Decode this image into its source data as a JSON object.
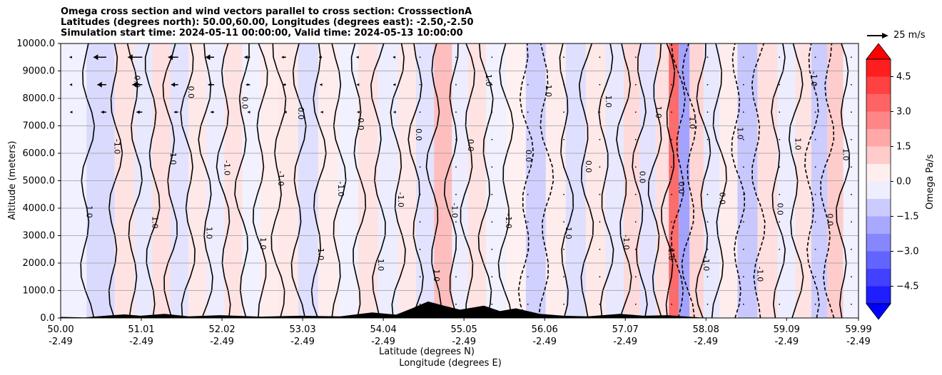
{
  "titles": {
    "line1": "Omega cross section and wind vectors parallel to cross section: CrosssectionA",
    "line2": "Latitudes (degrees north): 50.00,60.00, Longitudes (degrees east): -2.50,-2.50",
    "line3": "Simulation start time: 2024-05-11 00:00:00, Valid time: 2024-05-13 10:00:00"
  },
  "reference_vector": {
    "label": "25 m/s"
  },
  "chart_data": {
    "type": "heatmap",
    "title": "Omega cross section and wind vectors parallel to cross section: CrosssectionA",
    "ylabel": "Altitude (meters)",
    "xlabel_lat": "Latitude (degrees N)",
    "xlabel_lon": "Longitude (degrees E)",
    "ylim": [
      0,
      10000
    ],
    "xlim": [
      50.0,
      59.99
    ],
    "y_ticks": [
      {
        "value": 0,
        "label": "0.0"
      },
      {
        "value": 1000,
        "label": "1000.0"
      },
      {
        "value": 2000,
        "label": "2000.0"
      },
      {
        "value": 3000,
        "label": "3000.0"
      },
      {
        "value": 4000,
        "label": "4000.0"
      },
      {
        "value": 5000,
        "label": "5000.0"
      },
      {
        "value": 6000,
        "label": "6000.0"
      },
      {
        "value": 7000,
        "label": "7000.0"
      },
      {
        "value": 8000,
        "label": "8000.0"
      },
      {
        "value": 9000,
        "label": "9000.0"
      },
      {
        "value": 10000,
        "label": "10000.0"
      }
    ],
    "x_ticks": [
      {
        "lat": 50.0,
        "lat_label": "50.00",
        "lon_label": "-2.49"
      },
      {
        "lat": 51.01,
        "lat_label": "51.01",
        "lon_label": "-2.49"
      },
      {
        "lat": 52.02,
        "lat_label": "52.02",
        "lon_label": "-2.49"
      },
      {
        "lat": 53.03,
        "lat_label": "53.03",
        "lon_label": "-2.49"
      },
      {
        "lat": 54.04,
        "lat_label": "54.04",
        "lon_label": "-2.49"
      },
      {
        "lat": 55.05,
        "lat_label": "55.05",
        "lon_label": "-2.49"
      },
      {
        "lat": 56.06,
        "lat_label": "56.06",
        "lon_label": "-2.49"
      },
      {
        "lat": 57.07,
        "lat_label": "57.07",
        "lon_label": "-2.49"
      },
      {
        "lat": 58.08,
        "lat_label": "58.08",
        "lon_label": "-2.49"
      },
      {
        "lat": 59.09,
        "lat_label": "59.09",
        "lon_label": "-2.49"
      },
      {
        "lat": 59.99,
        "lat_label": "59.99",
        "lon_label": "-2.49"
      }
    ],
    "grid": true,
    "colorbar": {
      "label": "Omega Pa/s",
      "range": [
        -5.25,
        5.25
      ],
      "extend": "both",
      "ticks": [
        {
          "value": 4.5,
          "label": "4.5"
        },
        {
          "value": 3.0,
          "label": "3.0"
        },
        {
          "value": 1.5,
          "label": "1.5"
        },
        {
          "value": 0.0,
          "label": "0.0"
        },
        {
          "value": -1.5,
          "label": "−1.5"
        },
        {
          "value": -3.0,
          "label": "−3.0"
        },
        {
          "value": -4.5,
          "label": "−4.5"
        }
      ],
      "max_color": "#ff0000",
      "min_color": "#0000ff"
    },
    "contour_label_samples": [
      "0.0",
      "1.0",
      "-1.0"
    ],
    "omega_bands": [
      {
        "lat": 50.1,
        "value": -0.3
      },
      {
        "lat": 50.55,
        "value": -0.8
      },
      {
        "lat": 50.8,
        "value": 0.6
      },
      {
        "lat": 51.05,
        "value": -0.5
      },
      {
        "lat": 51.25,
        "value": 0.7
      },
      {
        "lat": 51.5,
        "value": -0.6
      },
      {
        "lat": 51.7,
        "value": 0.5
      },
      {
        "lat": 51.95,
        "value": -0.4
      },
      {
        "lat": 52.15,
        "value": 0.6
      },
      {
        "lat": 52.4,
        "value": -0.3
      },
      {
        "lat": 52.6,
        "value": 0.4
      },
      {
        "lat": 52.85,
        "value": 0.5
      },
      {
        "lat": 53.1,
        "value": -0.7
      },
      {
        "lat": 53.35,
        "value": 0.4
      },
      {
        "lat": 53.6,
        "value": -0.3
      },
      {
        "lat": 53.85,
        "value": 0.6
      },
      {
        "lat": 54.1,
        "value": -0.4
      },
      {
        "lat": 54.35,
        "value": 0.5
      },
      {
        "lat": 54.55,
        "value": -0.6
      },
      {
        "lat": 54.8,
        "value": 1.4
      },
      {
        "lat": 55.0,
        "value": -0.4
      },
      {
        "lat": 55.2,
        "value": 0.6
      },
      {
        "lat": 55.45,
        "value": -0.3
      },
      {
        "lat": 55.7,
        "value": 0.3
      },
      {
        "lat": 55.95,
        "value": -1.0
      },
      {
        "lat": 56.2,
        "value": 0.4
      },
      {
        "lat": 56.45,
        "value": -0.7
      },
      {
        "lat": 56.7,
        "value": 0.5
      },
      {
        "lat": 56.95,
        "value": -0.5
      },
      {
        "lat": 57.15,
        "value": 0.8
      },
      {
        "lat": 57.35,
        "value": -0.6
      },
      {
        "lat": 57.55,
        "value": 0.7
      },
      {
        "lat": 57.68,
        "value": 3.2
      },
      {
        "lat": 57.8,
        "value": -2.0
      },
      {
        "lat": 57.95,
        "value": 0.9
      },
      {
        "lat": 58.15,
        "value": -0.5
      },
      {
        "lat": 58.35,
        "value": 0.4
      },
      {
        "lat": 58.6,
        "value": -1.2
      },
      {
        "lat": 58.85,
        "value": 0.7
      },
      {
        "lat": 59.1,
        "value": -0.4
      },
      {
        "lat": 59.3,
        "value": 0.6
      },
      {
        "lat": 59.5,
        "value": -1.1
      },
      {
        "lat": 59.7,
        "value": 1.1
      },
      {
        "lat": 59.9,
        "value": -0.3
      }
    ],
    "terrain": [
      {
        "lat": 50.0,
        "alt": 40
      },
      {
        "lat": 50.3,
        "alt": 20
      },
      {
        "lat": 50.6,
        "alt": 90
      },
      {
        "lat": 50.8,
        "alt": 130
      },
      {
        "lat": 51.0,
        "alt": 80
      },
      {
        "lat": 51.3,
        "alt": 150
      },
      {
        "lat": 51.6,
        "alt": 60
      },
      {
        "lat": 52.0,
        "alt": 100
      },
      {
        "lat": 52.5,
        "alt": 50
      },
      {
        "lat": 53.0,
        "alt": 80
      },
      {
        "lat": 53.5,
        "alt": 60
      },
      {
        "lat": 53.9,
        "alt": 200
      },
      {
        "lat": 54.2,
        "alt": 120
      },
      {
        "lat": 54.4,
        "alt": 350
      },
      {
        "lat": 54.6,
        "alt": 600
      },
      {
        "lat": 54.8,
        "alt": 450
      },
      {
        "lat": 55.0,
        "alt": 300
      },
      {
        "lat": 55.3,
        "alt": 450
      },
      {
        "lat": 55.5,
        "alt": 250
      },
      {
        "lat": 55.7,
        "alt": 350
      },
      {
        "lat": 56.0,
        "alt": 150
      },
      {
        "lat": 56.3,
        "alt": 80
      },
      {
        "lat": 56.6,
        "alt": 60
      },
      {
        "lat": 57.0,
        "alt": 150
      },
      {
        "lat": 57.3,
        "alt": 80
      },
      {
        "lat": 57.6,
        "alt": 100
      },
      {
        "lat": 58.0,
        "alt": 20
      },
      {
        "lat": 58.5,
        "alt": 0
      },
      {
        "lat": 59.99,
        "alt": 0
      }
    ],
    "upper_wind_vectors": [
      {
        "lat": 50.05,
        "u": -1
      },
      {
        "lat": 50.5,
        "u": -18
      },
      {
        "lat": 50.95,
        "u": -20
      },
      {
        "lat": 51.4,
        "u": -14
      },
      {
        "lat": 51.85,
        "u": -12
      },
      {
        "lat": 52.3,
        "u": -8
      },
      {
        "lat": 52.75,
        "u": -6
      },
      {
        "lat": 53.2,
        "u": -4
      },
      {
        "lat": 53.65,
        "u": -2
      },
      {
        "lat": 54.1,
        "u": -1
      }
    ]
  }
}
